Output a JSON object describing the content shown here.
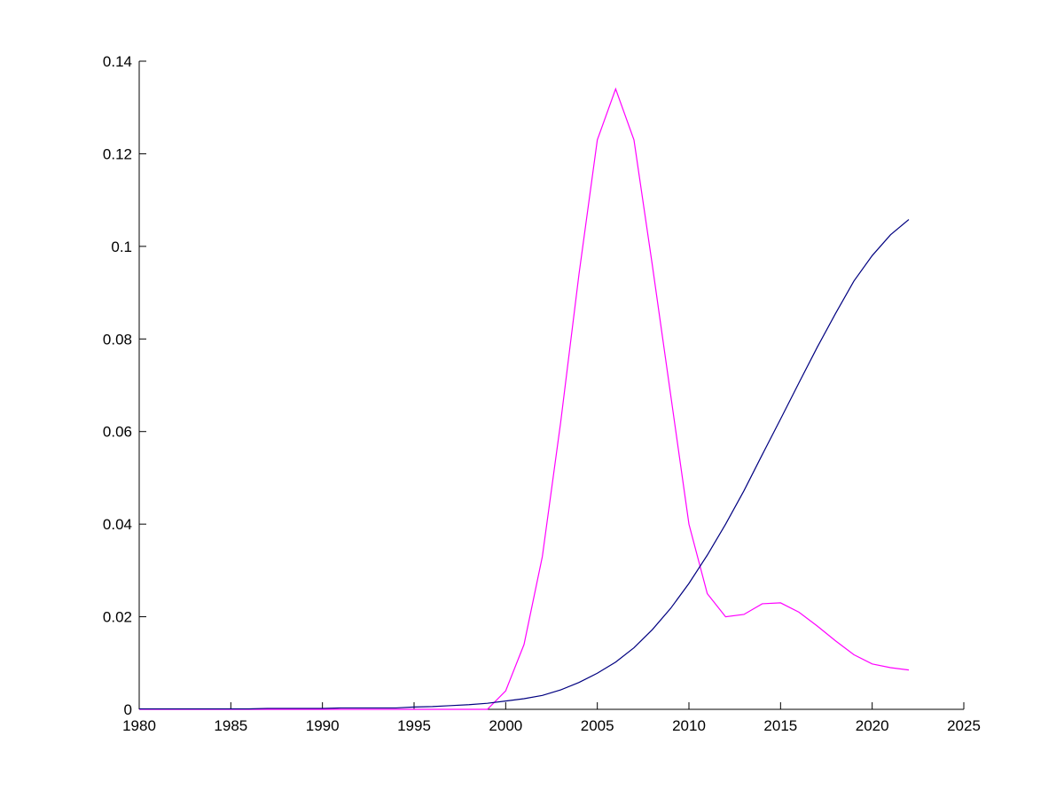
{
  "chart_data": {
    "type": "line",
    "x": [
      1980,
      1981,
      1982,
      1983,
      1984,
      1985,
      1986,
      1987,
      1988,
      1989,
      1990,
      1991,
      1992,
      1993,
      1994,
      1995,
      1996,
      1997,
      1998,
      1999,
      2000,
      2001,
      2002,
      2003,
      2004,
      2005,
      2006,
      2007,
      2008,
      2009,
      2010,
      2011,
      2012,
      2013,
      2014,
      2015,
      2016,
      2017,
      2018,
      2019,
      2020,
      2021,
      2022
    ],
    "series": [
      {
        "color": "#ff00ff",
        "values": [
          0,
          0,
          0,
          0,
          0,
          0,
          0,
          0,
          0,
          0,
          0,
          0,
          0,
          0,
          0,
          0,
          0,
          0,
          0,
          0,
          0.004,
          0.014,
          0.033,
          0.062,
          0.094,
          0.123,
          0.134,
          0.123,
          0.096,
          0.068,
          0.04,
          0.025,
          0.02,
          0.0205,
          0.0228,
          0.023,
          0.021,
          0.018,
          0.0148,
          0.0118,
          0.0098,
          0.009,
          0.0085
        ]
      },
      {
        "color": "#000080",
        "values": [
          0.0001,
          0.0001,
          0.0001,
          0.0001,
          0.0001,
          0.0001,
          0.0001,
          0.0002,
          0.0002,
          0.0002,
          0.0002,
          0.0003,
          0.0003,
          0.0003,
          0.0003,
          0.0005,
          0.0006,
          0.0008,
          0.001,
          0.0013,
          0.0018,
          0.0023,
          0.003,
          0.0042,
          0.0058,
          0.0078,
          0.0102,
          0.0133,
          0.0172,
          0.0218,
          0.0272,
          0.0333,
          0.04,
          0.0472,
          0.055,
          0.0627,
          0.0705,
          0.0782,
          0.0855,
          0.0925,
          0.098,
          0.1025,
          0.1058
        ]
      }
    ],
    "xlim": [
      1980,
      2025
    ],
    "xticks": [
      1980,
      1985,
      1990,
      1995,
      2000,
      2005,
      2010,
      2015,
      2020,
      2025
    ],
    "ylim": [
      0,
      0.14
    ],
    "yticks": [
      0,
      0.02,
      0.04,
      0.06,
      0.08,
      0.1,
      0.12,
      0.14
    ],
    "grid": false
  }
}
